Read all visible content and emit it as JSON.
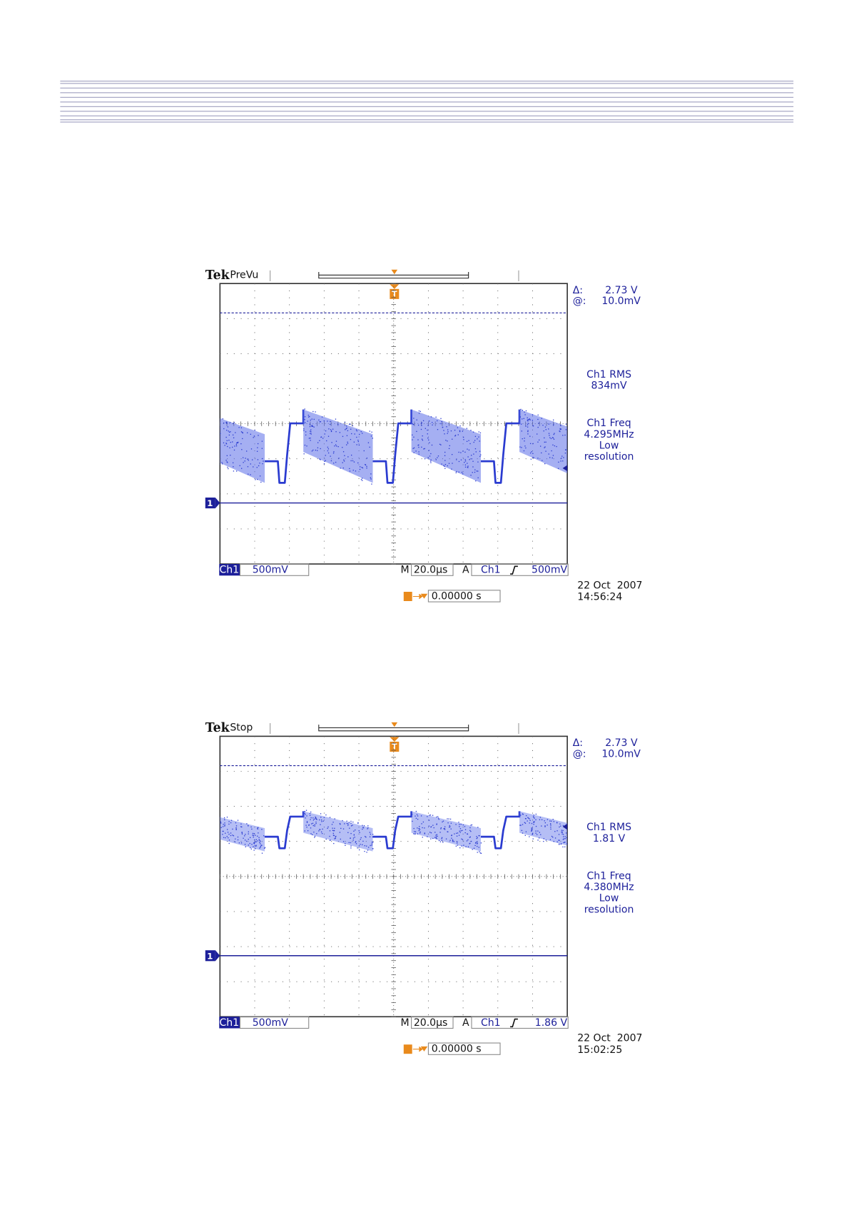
{
  "scopes": [
    {
      "brand": "Tek",
      "mode": "PreVu",
      "trigger_marker": "T",
      "channel_marker": "1",
      "cursor_delta_label": "Δ:",
      "cursor_delta": "2.73 V",
      "cursor_at_label": "@:",
      "cursor_at": "10.0mV",
      "measurements": [
        [
          "Ch1 RMS",
          "834mV"
        ],
        [
          "Ch1 Freq",
          "4.295MHz",
          "Low",
          "resolution"
        ]
      ],
      "channel": "Ch1",
      "volts_per_div": "500mV",
      "timebase_label": "M",
      "timebase": "20.0µs",
      "trigger_label": "A",
      "trigger_source": "Ch1",
      "trigger_level": "500mV",
      "trigger_pos": "0.00000 s",
      "date": "22 Oct  2007",
      "time": "14:56:24"
    },
    {
      "brand": "Tek",
      "mode": "Stop",
      "trigger_marker": "T",
      "channel_marker": "1",
      "cursor_delta_label": "Δ:",
      "cursor_delta": "2.73 V",
      "cursor_at_label": "@:",
      "cursor_at": "10.0mV",
      "measurements": [
        [
          "Ch1 RMS",
          "1.81 V"
        ],
        [
          "Ch1 Freq",
          "4.380MHz",
          "Low",
          "resolution"
        ]
      ],
      "channel": "Ch1",
      "volts_per_div": "500mV",
      "timebase_label": "M",
      "timebase": "20.0µs",
      "trigger_label": "A",
      "trigger_source": "Ch1",
      "trigger_level": "1.86 V",
      "trigger_pos": "0.00000 s",
      "date": "22 Oct  2007",
      "time": "15:02:25"
    }
  ]
}
